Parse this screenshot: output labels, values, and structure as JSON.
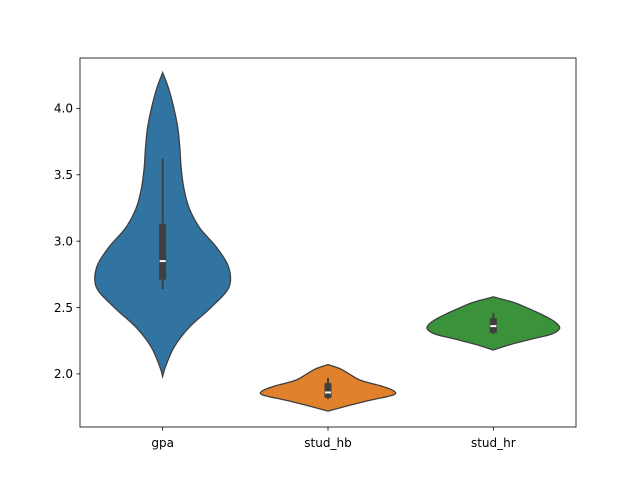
{
  "chart_data": {
    "type": "violin",
    "categories": [
      "gpa",
      "stud_hb",
      "stud_hr"
    ],
    "ylim": [
      1.6,
      4.38
    ],
    "yticks": [
      2.0,
      2.5,
      3.0,
      3.5,
      4.0
    ],
    "ytick_labels": [
      "2.0",
      "2.5",
      "3.0",
      "3.5",
      "4.0"
    ],
    "series": [
      {
        "color": "#3274a1",
        "density": [
          [
            1.98,
            0.0
          ],
          [
            2.05,
            0.04
          ],
          [
            2.2,
            0.17
          ],
          [
            2.35,
            0.4
          ],
          [
            2.5,
            0.73
          ],
          [
            2.65,
            1.0
          ],
          [
            2.8,
            1.0
          ],
          [
            2.95,
            0.82
          ],
          [
            3.1,
            0.56
          ],
          [
            3.25,
            0.4
          ],
          [
            3.4,
            0.32
          ],
          [
            3.55,
            0.28
          ],
          [
            3.7,
            0.26
          ],
          [
            3.85,
            0.23
          ],
          [
            4.0,
            0.17
          ],
          [
            4.15,
            0.09
          ],
          [
            4.27,
            0.0
          ]
        ],
        "box": {
          "whisker_low": 2.64,
          "q1": 2.71,
          "median": 2.85,
          "q3": 3.13,
          "whisker_high": 3.62
        }
      },
      {
        "color": "#e1812c",
        "density": [
          [
            1.72,
            0.0
          ],
          [
            1.76,
            0.3
          ],
          [
            1.8,
            0.62
          ],
          [
            1.84,
            0.98
          ],
          [
            1.87,
            1.0
          ],
          [
            1.91,
            0.8
          ],
          [
            1.95,
            0.5
          ],
          [
            2.0,
            0.32
          ],
          [
            2.04,
            0.18
          ],
          [
            2.07,
            0.0
          ]
        ],
        "box": {
          "whisker_low": 1.81,
          "q1": 1.82,
          "median": 1.86,
          "q3": 1.93,
          "whisker_high": 1.97
        }
      },
      {
        "color": "#3a923a",
        "density": [
          [
            2.18,
            0.0
          ],
          [
            2.22,
            0.25
          ],
          [
            2.26,
            0.56
          ],
          [
            2.3,
            0.88
          ],
          [
            2.34,
            1.0
          ],
          [
            2.38,
            0.96
          ],
          [
            2.42,
            0.84
          ],
          [
            2.46,
            0.68
          ],
          [
            2.5,
            0.5
          ],
          [
            2.54,
            0.3
          ],
          [
            2.58,
            0.0
          ]
        ],
        "box": {
          "whisker_low": 2.3,
          "q1": 2.31,
          "median": 2.36,
          "q3": 2.42,
          "whisker_high": 2.46
        }
      }
    ],
    "grid": false,
    "legend": "none"
  }
}
